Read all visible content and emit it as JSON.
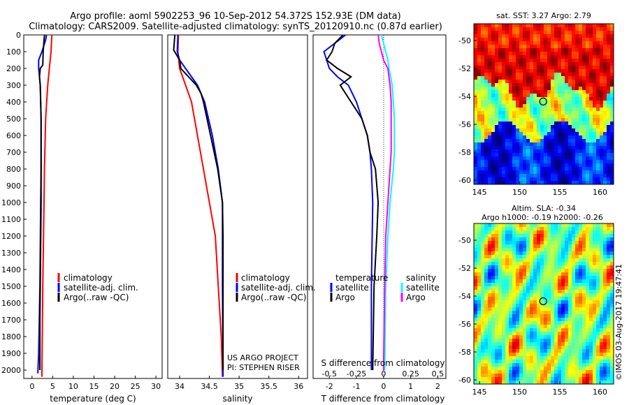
{
  "header": {
    "line1": "Argo profile: aoml 5902253_96 10-Sep-2012 54.372S 152.93E (DM data)",
    "line2": "Climatology: CARS2009. Satellite-adjusted climatology: synTS_20120910.nc (0.87d earlier)"
  },
  "colors": {
    "climatology": "#ff0000",
    "satellite": "#0000ff",
    "argo": "#000000",
    "sal_satellite": "#00ffff",
    "sal_argo": "#ff00ff"
  },
  "chart_data": [
    {
      "type": "line",
      "xlabel": "temperature (deg C)",
      "xlim": [
        -2,
        31.5
      ],
      "ylim": [
        0,
        2050
      ],
      "x_ticks": [
        0,
        5,
        10,
        15,
        20,
        25,
        30
      ],
      "y_ticks": [
        0,
        100,
        200,
        300,
        400,
        500,
        600,
        700,
        800,
        900,
        1000,
        1100,
        1200,
        1300,
        1400,
        1500,
        1600,
        1700,
        1800,
        1900,
        2000
      ],
      "legend": [
        "climatology",
        "satellite-adj. clim.",
        "Argo(..raw -QC)"
      ],
      "series": [
        {
          "name": "climatology",
          "depth": [
            0,
            100,
            200,
            300,
            500,
            800,
            1000,
            1500,
            2000,
            2040
          ],
          "values": [
            4.8,
            4.6,
            4.2,
            3.8,
            3.3,
            3.0,
            2.9,
            2.6,
            2.4,
            2.4
          ]
        },
        {
          "name": "satellite-adj. clim.",
          "depth": [
            0,
            30,
            100,
            150,
            200,
            300,
            500,
            800,
            1000,
            1500,
            1900,
            2020
          ],
          "values": [
            3.5,
            3.3,
            2.4,
            1.6,
            1.6,
            2.0,
            2.2,
            2.2,
            2.1,
            1.9,
            1.6,
            1.4
          ]
        },
        {
          "name": "Argo(..raw -QC)",
          "depth": [
            0,
            30,
            100,
            180,
            200,
            250,
            300,
            400,
            500,
            800,
            1000,
            1500,
            1700,
            2000
          ],
          "values": [
            3.0,
            2.9,
            2.7,
            2.6,
            2.0,
            1.8,
            2.0,
            2.1,
            2.2,
            2.2,
            2.2,
            2.0,
            1.9,
            1.9
          ]
        }
      ]
    },
    {
      "type": "line",
      "xlabel": "salinity",
      "xlim": [
        33.8,
        36.15
      ],
      "ylim": [
        0,
        2050
      ],
      "x_ticks": [
        34,
        34.5,
        35,
        35.5,
        36
      ],
      "legend": [
        "climatology",
        "satellite-adj. clim.",
        "Argo(..raw -QC)"
      ],
      "annotation": [
        "US ARGO PROJECT",
        "PI: STEPHEN RISER"
      ],
      "series": [
        {
          "name": "climatology",
          "depth": [
            0,
            100,
            200,
            250,
            300,
            400,
            500,
            700,
            800,
            1000,
            1200,
            1500,
            1800,
            2040
          ],
          "values": [
            33.98,
            33.97,
            34.0,
            34.05,
            34.1,
            34.2,
            34.25,
            34.35,
            34.4,
            34.5,
            34.6,
            34.65,
            34.7,
            34.72
          ]
        },
        {
          "name": "satellite-adj. clim.",
          "depth": [
            0,
            100,
            150,
            200,
            300,
            400,
            600,
            800,
            1000,
            1200,
            1500,
            2000,
            2040
          ],
          "values": [
            33.97,
            33.96,
            34.0,
            34.1,
            34.3,
            34.42,
            34.55,
            34.65,
            34.72,
            34.72,
            34.72,
            34.73,
            34.73
          ]
        },
        {
          "name": "Argo(..raw -QC)",
          "depth": [
            0,
            90,
            150,
            200,
            250,
            300,
            350,
            400,
            600,
            800,
            1000,
            1200,
            1500,
            2000
          ],
          "values": [
            33.92,
            33.9,
            34.0,
            34.02,
            34.15,
            34.28,
            34.36,
            34.4,
            34.52,
            34.64,
            34.72,
            34.73,
            34.73,
            34.73
          ]
        }
      ]
    },
    {
      "type": "line",
      "xlabel": "T difference from climatology",
      "x2label": "S difference from climatology",
      "xlim": [
        -2.6,
        2.3
      ],
      "x2lim": [
        -0.65,
        0.575
      ],
      "ylim": [
        0,
        2050
      ],
      "x_ticks": [
        -2,
        -1,
        0,
        1,
        2
      ],
      "x2_ticks": [
        "-0.5",
        "-0.25",
        "0",
        "0.25",
        "0.5"
      ],
      "legend_groups": [
        "temperature",
        "salinity"
      ],
      "legend": [
        "satellite",
        "Argo",
        "satellite",
        "Argo"
      ],
      "series": [
        {
          "name": "temperature satellite",
          "depth": [
            0,
            50,
            100,
            150,
            200,
            250,
            300,
            400,
            500,
            600,
            700,
            800,
            1000,
            1500,
            2000
          ],
          "values": [
            -1.4,
            -1.8,
            -2.2,
            -2.1,
            -2.0,
            -1.7,
            -1.3,
            -1.0,
            -0.8,
            -0.6,
            -0.5,
            -0.45,
            -0.4,
            -0.45,
            -0.45
          ]
        },
        {
          "name": "temperature Argo",
          "depth": [
            0,
            50,
            100,
            150,
            200,
            250,
            300,
            400,
            500,
            600,
            700,
            800,
            1000,
            1200,
            1500,
            2000
          ],
          "values": [
            -1.5,
            -1.8,
            -1.9,
            -2.1,
            -1.7,
            -1.2,
            -1.6,
            -1.2,
            -0.8,
            -0.6,
            -0.5,
            -0.3,
            -0.2,
            -0.25,
            -0.35,
            -0.4
          ]
        },
        {
          "name": "salinity satellite",
          "depth": [
            0,
            50,
            100,
            150,
            200,
            300,
            400,
            500,
            600,
            700,
            800,
            1000,
            1200,
            1500,
            2000
          ],
          "values": [
            -0.02,
            0.0,
            0.02,
            0.04,
            0.05,
            0.08,
            0.09,
            0.1,
            0.1,
            0.1,
            0.09,
            0.06,
            0.04,
            0.02,
            0.01
          ]
        },
        {
          "name": "salinity Argo",
          "depth": [
            0,
            50,
            100,
            150,
            200,
            300,
            400,
            500,
            600,
            700,
            800,
            1000,
            1200,
            1500,
            2000
          ],
          "values": [
            -0.05,
            -0.04,
            -0.02,
            0.0,
            0.04,
            0.06,
            0.07,
            0.07,
            0.07,
            0.07,
            0.06,
            0.04,
            0.02,
            0.01,
            0.0
          ]
        }
      ]
    },
    {
      "type": "heatmap",
      "title": "sat. SST: 3.27 Argo: 2.79",
      "x_ticks": [
        145,
        150,
        155,
        160
      ],
      "y_ticks": [
        -50,
        -52,
        -54,
        -56,
        -58,
        -60
      ],
      "xlim": [
        144.3,
        161.7
      ],
      "ylim": [
        -60.3,
        -48.8
      ],
      "argo_position": [
        152.93,
        -54.37
      ]
    },
    {
      "type": "heatmap",
      "title": "Altim. SLA: -0.34",
      "subtitle": "Argo h1000: -0.19 h2000: -0.26",
      "x_ticks": [
        145,
        150,
        155,
        160
      ],
      "y_ticks": [
        -50,
        -52,
        -54,
        -56,
        -58,
        -60
      ],
      "xlim": [
        144.3,
        161.7
      ],
      "ylim": [
        -60.3,
        -48.8
      ],
      "argo_position": [
        152.93,
        -54.37
      ]
    }
  ],
  "watermark": "©IMOS 03-Aug-2017 19:47:41"
}
